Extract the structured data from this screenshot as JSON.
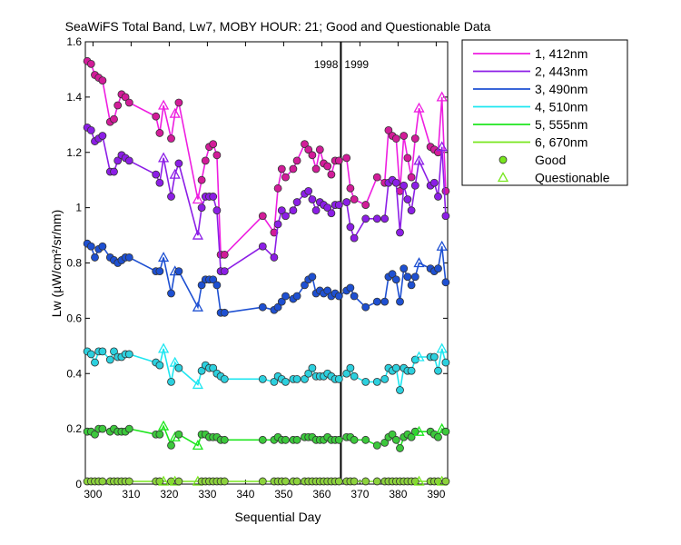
{
  "chart_data": {
    "type": "line",
    "title": "SeaWiFS Total Band,  Lw7, MOBY HOUR: 21;  Good and Questionable Data",
    "xlabel": "Sequential Day",
    "ylabel": "Lw (µW/cm²/sr/nm)",
    "xlim": [
      298,
      393
    ],
    "ylim": [
      0,
      1.6
    ],
    "xticks": [
      300,
      310,
      320,
      330,
      340,
      350,
      360,
      370,
      380,
      390
    ],
    "yticks": [
      0,
      0.2,
      0.4,
      0.6,
      0.8,
      1,
      1.2,
      1.4,
      1.6
    ],
    "year_boundary": {
      "x": 365,
      "label_left": "1998",
      "label_right": "1999"
    },
    "x": [
      298.5,
      299.5,
      300.5,
      301.5,
      302.5,
      304.5,
      305.5,
      306.5,
      307.5,
      308.5,
      309.5,
      316.5,
      317.5,
      318.5,
      320.5,
      321.5,
      322.5,
      327.5,
      328.5,
      329.5,
      330.5,
      331.5,
      332.5,
      333.5,
      334.5,
      344.5,
      347.5,
      348.5,
      349.5,
      350.5,
      352.5,
      353.5,
      355.5,
      356.5,
      357.5,
      358.5,
      359.5,
      360.5,
      361.5,
      362.5,
      363.5,
      364.5,
      366.5,
      367.5,
      368.5,
      371.5,
      374.5,
      376.5,
      377.5,
      378.5,
      379.5,
      380.5,
      381.5,
      382.5,
      383.5,
      384.5,
      385.5,
      388.5,
      389.5,
      390.5,
      391.5,
      392.5
    ],
    "quality": [
      "g",
      "g",
      "g",
      "g",
      "g",
      "g",
      "g",
      "g",
      "g",
      "g",
      "g",
      "g",
      "g",
      "q",
      "g",
      "q",
      "g",
      "q",
      "g",
      "g",
      "g",
      "g",
      "g",
      "g",
      "g",
      "g",
      "g",
      "g",
      "g",
      "g",
      "g",
      "g",
      "g",
      "g",
      "g",
      "g",
      "g",
      "g",
      "g",
      "g",
      "g",
      "g",
      "g",
      "g",
      "g",
      "g",
      "g",
      "g",
      "g",
      "g",
      "g",
      "g",
      "g",
      "g",
      "g",
      "g",
      "q",
      "g",
      "g",
      "g",
      "q",
      "g"
    ],
    "series": [
      {
        "name": "1, 412nm",
        "color": "#ee1ee0",
        "marker_color": "#d21c99",
        "values": [
          1.53,
          1.52,
          1.48,
          1.47,
          1.46,
          1.31,
          1.32,
          1.37,
          1.41,
          1.4,
          1.38,
          1.33,
          1.27,
          1.37,
          1.25,
          1.34,
          1.38,
          1.03,
          1.1,
          1.17,
          1.22,
          1.23,
          1.19,
          0.83,
          0.83,
          0.97,
          0.91,
          1.07,
          1.14,
          1.11,
          1.14,
          1.17,
          1.23,
          1.21,
          1.19,
          1.14,
          1.21,
          1.16,
          1.15,
          1.12,
          1.17,
          1.17,
          1.18,
          1.07,
          1.03,
          1.01,
          1.11,
          1.09,
          1.28,
          1.26,
          1.25,
          1.06,
          1.26,
          1.18,
          1.11,
          1.25,
          1.36,
          1.22,
          1.21,
          1.2,
          1.4,
          1.06
        ]
      },
      {
        "name": "2, 443nm",
        "color": "#8c1ee6",
        "marker_color": "#8c1ee6",
        "values": [
          1.29,
          1.28,
          1.24,
          1.25,
          1.26,
          1.13,
          1.13,
          1.17,
          1.19,
          1.18,
          1.17,
          1.12,
          1.09,
          1.18,
          1.04,
          1.12,
          1.16,
          0.9,
          1.0,
          1.04,
          1.04,
          1.04,
          0.99,
          0.77,
          0.77,
          0.86,
          0.82,
          0.94,
          0.99,
          0.97,
          0.99,
          1.02,
          1.05,
          1.06,
          1.03,
          0.99,
          1.02,
          1.01,
          1.0,
          0.98,
          1.01,
          1.01,
          1.02,
          0.93,
          0.89,
          0.96,
          0.96,
          0.96,
          1.09,
          1.1,
          1.09,
          0.91,
          1.08,
          1.03,
          0.99,
          1.08,
          1.17,
          1.08,
          1.09,
          1.04,
          1.22,
          0.97
        ]
      },
      {
        "name": "3, 490nm",
        "color": "#1e50d2",
        "marker_color": "#1e50d2",
        "values": [
          0.87,
          0.86,
          0.82,
          0.85,
          0.86,
          0.82,
          0.81,
          0.8,
          0.81,
          0.82,
          0.82,
          0.77,
          0.77,
          0.82,
          0.69,
          0.77,
          0.77,
          0.64,
          0.72,
          0.74,
          0.74,
          0.74,
          0.72,
          0.62,
          0.62,
          0.64,
          0.63,
          0.64,
          0.66,
          0.68,
          0.67,
          0.68,
          0.72,
          0.74,
          0.75,
          0.69,
          0.7,
          0.69,
          0.7,
          0.68,
          0.69,
          0.68,
          0.7,
          0.71,
          0.68,
          0.64,
          0.66,
          0.66,
          0.75,
          0.76,
          0.74,
          0.66,
          0.78,
          0.75,
          0.72,
          0.75,
          0.8,
          0.78,
          0.77,
          0.78,
          0.86,
          0.73
        ]
      },
      {
        "name": "4, 510nm",
        "color": "#1ee6f0",
        "marker_color": "#2cd0de",
        "values": [
          0.48,
          0.47,
          0.44,
          0.48,
          0.48,
          0.45,
          0.48,
          0.46,
          0.46,
          0.47,
          0.47,
          0.44,
          0.43,
          0.49,
          0.37,
          0.44,
          0.42,
          0.36,
          0.41,
          0.43,
          0.42,
          0.42,
          0.4,
          0.39,
          0.38,
          0.38,
          0.37,
          0.39,
          0.38,
          0.37,
          0.38,
          0.38,
          0.38,
          0.4,
          0.42,
          0.39,
          0.39,
          0.39,
          0.4,
          0.39,
          0.38,
          0.38,
          0.4,
          0.42,
          0.39,
          0.37,
          0.37,
          0.38,
          0.42,
          0.41,
          0.42,
          0.34,
          0.42,
          0.41,
          0.41,
          0.45,
          0.46,
          0.46,
          0.46,
          0.41,
          0.49,
          0.44
        ]
      },
      {
        "name": "5, 555nm",
        "color": "#1ee61e",
        "marker_color": "#3cc83c",
        "values": [
          0.19,
          0.19,
          0.18,
          0.2,
          0.2,
          0.19,
          0.2,
          0.19,
          0.19,
          0.19,
          0.2,
          0.18,
          0.18,
          0.21,
          0.14,
          0.17,
          0.18,
          0.14,
          0.18,
          0.18,
          0.17,
          0.17,
          0.17,
          0.16,
          0.16,
          0.16,
          0.16,
          0.17,
          0.16,
          0.16,
          0.16,
          0.16,
          0.17,
          0.17,
          0.17,
          0.16,
          0.16,
          0.16,
          0.17,
          0.16,
          0.16,
          0.16,
          0.17,
          0.17,
          0.16,
          0.16,
          0.14,
          0.15,
          0.17,
          0.18,
          0.16,
          0.13,
          0.17,
          0.18,
          0.17,
          0.19,
          0.19,
          0.19,
          0.18,
          0.17,
          0.2,
          0.19
        ]
      },
      {
        "name": "6, 670nm",
        "color": "#78e61e",
        "marker_color": "#8cd23c",
        "values": [
          0.01,
          0.01,
          0.01,
          0.01,
          0.01,
          0.01,
          0.01,
          0.01,
          0.01,
          0.01,
          0.01,
          0.01,
          0.01,
          0.01,
          0.01,
          0.01,
          0.01,
          0.01,
          0.01,
          0.01,
          0.01,
          0.01,
          0.01,
          0.01,
          0.01,
          0.01,
          0.01,
          0.01,
          0.01,
          0.01,
          0.01,
          0.01,
          0.01,
          0.01,
          0.01,
          0.01,
          0.01,
          0.01,
          0.01,
          0.01,
          0.01,
          0.01,
          0.01,
          0.01,
          0.01,
          0.01,
          0.01,
          0.01,
          0.01,
          0.01,
          0.01,
          0.01,
          0.01,
          0.01,
          0.01,
          0.01,
          0.01,
          0.01,
          0.01,
          0.01,
          0.01,
          0.01
        ]
      }
    ],
    "legend": {
      "placement": "outside-top-right",
      "entries": [
        "1, 412nm",
        "2, 443nm",
        "3, 490nm",
        "4, 510nm",
        "5, 555nm",
        "6, 670nm",
        "Good",
        "Questionable"
      ],
      "good_label": "Good",
      "questionable_label": "Questionable",
      "good_color": "#78e61e",
      "questionable_color": "#78e61e"
    }
  }
}
